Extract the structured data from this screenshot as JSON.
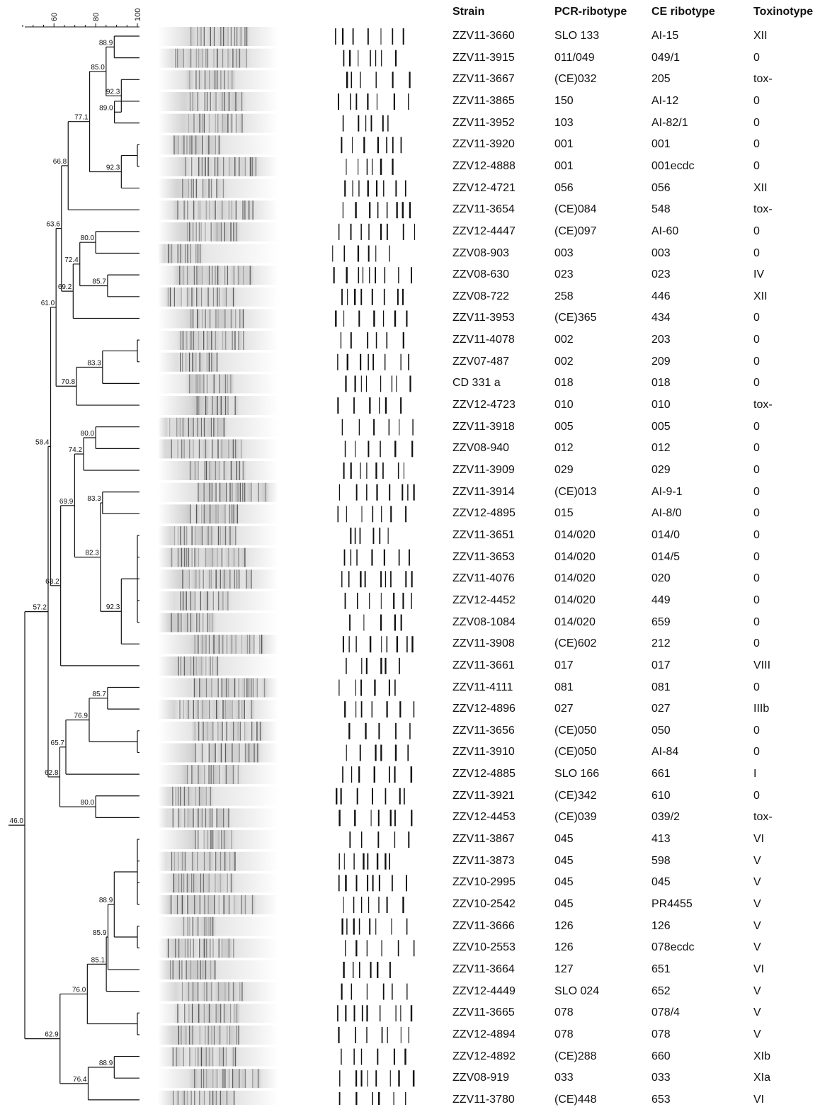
{
  "headers": {
    "strain": "Strain",
    "pcr": "PCR-ribotype",
    "ce": "CE ribotype",
    "tox": "Toxinotype"
  },
  "scale": {
    "ticks": [
      "60",
      "80",
      "100"
    ],
    "min": 40,
    "max": 100
  },
  "rows": [
    {
      "strain": "ZZV11-3660",
      "pcr": "SLO 133",
      "ce": "AI-15",
      "tox": "XII"
    },
    {
      "strain": "ZZV11-3915",
      "pcr": "011/049",
      "ce": "049/1",
      "tox": "0"
    },
    {
      "strain": "ZZV11-3667",
      "pcr": "(CE)032",
      "ce": "205",
      "tox": "tox-"
    },
    {
      "strain": "ZZV11-3865",
      "pcr": "150",
      "ce": "AI-12",
      "tox": "0"
    },
    {
      "strain": "ZZV11-3952",
      "pcr": "103",
      "ce": "AI-82/1",
      "tox": "0"
    },
    {
      "strain": "ZZV11-3920",
      "pcr": "001",
      "ce": "001",
      "tox": "0"
    },
    {
      "strain": "ZZV12-4888",
      "pcr": "001",
      "ce": "001ecdc",
      "tox": "0"
    },
    {
      "strain": "ZZV12-4721",
      "pcr": "056",
      "ce": "056",
      "tox": "XII"
    },
    {
      "strain": "ZZV11-3654",
      "pcr": "(CE)084",
      "ce": "548",
      "tox": "tox-"
    },
    {
      "strain": "ZZV12-4447",
      "pcr": "(CE)097",
      "ce": "AI-60",
      "tox": "0"
    },
    {
      "strain": "ZZV08-903",
      "pcr": "003",
      "ce": "003",
      "tox": "0"
    },
    {
      "strain": "ZZV08-630",
      "pcr": "023",
      "ce": "023",
      "tox": "IV"
    },
    {
      "strain": "ZZV08-722",
      "pcr": "258",
      "ce": "446",
      "tox": "XII"
    },
    {
      "strain": "ZZV11-3953",
      "pcr": "(CE)365",
      "ce": "434",
      "tox": "0"
    },
    {
      "strain": "ZZV11-4078",
      "pcr": "002",
      "ce": "203",
      "tox": "0"
    },
    {
      "strain": "ZZV07-487",
      "pcr": "002",
      "ce": "209",
      "tox": "0"
    },
    {
      "strain": "CD 331 a",
      "pcr": "018",
      "ce": "018",
      "tox": "0"
    },
    {
      "strain": "ZZV12-4723",
      "pcr": "010",
      "ce": "010",
      "tox": "tox-"
    },
    {
      "strain": "ZZV11-3918",
      "pcr": "005",
      "ce": "005",
      "tox": "0"
    },
    {
      "strain": "ZZV08-940",
      "pcr": "012",
      "ce": "012",
      "tox": "0"
    },
    {
      "strain": "ZZV11-3909",
      "pcr": "029",
      "ce": "029",
      "tox": "0"
    },
    {
      "strain": "ZZV11-3914",
      "pcr": "(CE)013",
      "ce": "AI-9-1",
      "tox": "0"
    },
    {
      "strain": "ZZV12-4895",
      "pcr": "015",
      "ce": "AI-8/0",
      "tox": "0"
    },
    {
      "strain": "ZZV11-3651",
      "pcr": "014/020",
      "ce": "014/0",
      "tox": "0"
    },
    {
      "strain": "ZZV11-3653",
      "pcr": "014/020",
      "ce": "014/5",
      "tox": "0"
    },
    {
      "strain": "ZZV11-4076",
      "pcr": "014/020",
      "ce": "020",
      "tox": "0"
    },
    {
      "strain": "ZZV12-4452",
      "pcr": "014/020",
      "ce": "449",
      "tox": "0"
    },
    {
      "strain": "ZZV08-1084",
      "pcr": "014/020",
      "ce": "659",
      "tox": "0"
    },
    {
      "strain": "ZZV11-3908",
      "pcr": "(CE)602",
      "ce": "212",
      "tox": "0"
    },
    {
      "strain": "ZZV11-3661",
      "pcr": "017",
      "ce": "017",
      "tox": "VIII"
    },
    {
      "strain": "ZZV11-4111",
      "pcr": "081",
      "ce": "081",
      "tox": "0"
    },
    {
      "strain": "ZZV12-4896",
      "pcr": "027",
      "ce": "027",
      "tox": "IIIb"
    },
    {
      "strain": "ZZV11-3656",
      "pcr": "(CE)050",
      "ce": "050",
      "tox": "0"
    },
    {
      "strain": "ZZV11-3910",
      "pcr": "(CE)050",
      "ce": "AI-84",
      "tox": "0"
    },
    {
      "strain": "ZZV12-4885",
      "pcr": "SLO 166",
      "ce": "661",
      "tox": "I"
    },
    {
      "strain": "ZZV11-3921",
      "pcr": "(CE)342",
      "ce": "610",
      "tox": "0"
    },
    {
      "strain": "ZZV12-4453",
      "pcr": "(CE)039",
      "ce": "039/2",
      "tox": "tox-"
    },
    {
      "strain": "ZZV11-3867",
      "pcr": "045",
      "ce": "413",
      "tox": "VI"
    },
    {
      "strain": "ZZV11-3873",
      "pcr": "045",
      "ce": "598",
      "tox": "V"
    },
    {
      "strain": "ZZV10-2995",
      "pcr": "045",
      "ce": "045",
      "tox": "V"
    },
    {
      "strain": "ZZV10-2542",
      "pcr": "045",
      "ce": "PR4455",
      "tox": "V"
    },
    {
      "strain": "ZZV11-3666",
      "pcr": "126",
      "ce": "126",
      "tox": "V"
    },
    {
      "strain": "ZZV10-2553",
      "pcr": "126",
      "ce": "078ecdc",
      "tox": "V"
    },
    {
      "strain": "ZZV11-3664",
      "pcr": "127",
      "ce": "651",
      "tox": "VI"
    },
    {
      "strain": "ZZV12-4449",
      "pcr": "SLO 024",
      "ce": "652",
      "tox": "V"
    },
    {
      "strain": "ZZV11-3665",
      "pcr": "078",
      "ce": "078/4",
      "tox": "V"
    },
    {
      "strain": "ZZV12-4894",
      "pcr": "078",
      "ce": "078",
      "tox": "V"
    },
    {
      "strain": "ZZV12-4892",
      "pcr": "(CE)288",
      "ce": "660",
      "tox": "XIb"
    },
    {
      "strain": "ZZV08-919",
      "pcr": "033",
      "ce": "033",
      "tox": "XIa"
    },
    {
      "strain": "ZZV11-3780",
      "pcr": "(CE)448",
      "ce": "653",
      "tox": "VI"
    }
  ],
  "tree": {
    "label": "46.0",
    "sim": 46.0,
    "children": [
      {
        "label": "57.2",
        "sim": 57.2,
        "children": [
          {
            "label": "58.4",
            "sim": 58.4,
            "children": [
              {
                "label": "61.0",
                "sim": 61.0,
                "children": [
                  {
                    "label": "63.6",
                    "sim": 63.6,
                    "children": [
                      {
                        "label": "66.8",
                        "sim": 66.8,
                        "children": [
                          {
                            "label": "77.1",
                            "sim": 77.1,
                            "children": [
                              {
                                "label": "85.0",
                                "sim": 85.0,
                                "children": [
                                  {
                                    "label": "88.9",
                                    "sim": 88.9,
                                    "children": [
                                      {
                                        "leaf": 0
                                      },
                                      {
                                        "leaf": 1
                                      }
                                    ]
                                  },
                                  {
                                    "label": "92.3",
                                    "sim": 92.3,
                                    "children": [
                                      {
                                        "leaf": 2
                                      },
                                      {
                                        "label": "89.0",
                                        "sim": 89.0,
                                        "children": [
                                          {
                                            "leaf": 3
                                          },
                                          {
                                            "leaf": 4
                                          }
                                        ]
                                      }
                                    ]
                                  }
                                ]
                              },
                              {
                                "label": "92.3",
                                "sim": 92.3,
                                "children": [
                                  {
                                    "label": "",
                                    "sim": 100,
                                    "children": [
                                      {
                                        "leaf": 5
                                      },
                                      {
                                        "leaf": 6
                                      }
                                    ]
                                  },
                                  {
                                    "leaf": 7
                                  }
                                ]
                              }
                            ]
                          },
                          {
                            "leaf": 8
                          }
                        ]
                      },
                      {
                        "label": "69.2",
                        "sim": 69.2,
                        "children": [
                          {
                            "label": "72.4",
                            "sim": 72.4,
                            "children": [
                              {
                                "label": "80.0",
                                "sim": 80.0,
                                "children": [
                                  {
                                    "leaf": 9
                                  },
                                  {
                                    "leaf": 10
                                  }
                                ]
                              },
                              {
                                "label": "85.7",
                                "sim": 85.7,
                                "children": [
                                  {
                                    "leaf": 11
                                  },
                                  {
                                    "leaf": 12
                                  }
                                ]
                              }
                            ]
                          },
                          {
                            "leaf": 13
                          }
                        ]
                      }
                    ]
                  },
                  {
                    "label": "70.8",
                    "sim": 70.8,
                    "children": [
                      {
                        "label": "83.3",
                        "sim": 83.3,
                        "children": [
                          {
                            "label": "",
                            "sim": 100,
                            "children": [
                              {
                                "leaf": 14
                              },
                              {
                                "leaf": 15
                              }
                            ]
                          },
                          {
                            "leaf": 16
                          }
                        ]
                      },
                      {
                        "leaf": 17
                      }
                    ]
                  }
                ]
              },
              {
                "label": "63.2",
                "sim": 63.2,
                "children": [
                  {
                    "label": "69.9",
                    "sim": 69.9,
                    "children": [
                      {
                        "label": "74.2",
                        "sim": 74.2,
                        "children": [
                          {
                            "label": "80.0",
                            "sim": 80.0,
                            "children": [
                              {
                                "leaf": 18
                              },
                              {
                                "leaf": 19
                              }
                            ]
                          },
                          {
                            "leaf": 20
                          }
                        ]
                      },
                      {
                        "label": "82.3",
                        "sim": 82.3,
                        "children": [
                          {
                            "label": "83.3",
                            "sim": 83.3,
                            "children": [
                              {
                                "leaf": 21
                              },
                              {
                                "leaf": 22
                              }
                            ]
                          },
                          {
                            "label": "92.3",
                            "sim": 92.3,
                            "children": [
                              {
                                "label": "",
                                "sim": 100,
                                "children": [
                                  {
                                    "leaf": 23
                                  },
                                  {
                                    "leaf": 24
                                  },
                                  {
                                    "leaf": 25
                                  },
                                  {
                                    "leaf": 26
                                  },
                                  {
                                    "leaf": 27
                                  }
                                ]
                              },
                              {
                                "leaf": 28
                              }
                            ]
                          }
                        ]
                      }
                    ]
                  },
                  {
                    "leaf": 29
                  }
                ]
              }
            ]
          },
          {
            "label": "62.8",
            "sim": 62.8,
            "children": [
              {
                "label": "65.7",
                "sim": 65.7,
                "children": [
                  {
                    "label": "76.9",
                    "sim": 76.9,
                    "children": [
                      {
                        "label": "85.7",
                        "sim": 85.7,
                        "children": [
                          {
                            "leaf": 30
                          },
                          {
                            "leaf": 31
                          }
                        ]
                      },
                      {
                        "label": "",
                        "sim": 100,
                        "children": [
                          {
                            "leaf": 32
                          },
                          {
                            "leaf": 33
                          }
                        ]
                      }
                    ]
                  },
                  {
                    "leaf": 34
                  }
                ]
              },
              {
                "label": "80.0",
                "sim": 80.0,
                "children": [
                  {
                    "leaf": 35
                  },
                  {
                    "leaf": 36
                  }
                ]
              }
            ]
          }
        ]
      },
      {
        "label": "62.9",
        "sim": 62.9,
        "children": [
          {
            "label": "76.0",
            "sim": 76.0,
            "children": [
              {
                "label": "85.1",
                "sim": 85.1,
                "children": [
                  {
                    "label": "85.9",
                    "sim": 85.9,
                    "children": [
                      {
                        "label": "88.9",
                        "sim": 88.9,
                        "children": [
                          {
                            "label": "",
                            "sim": 100,
                            "children": [
                              {
                                "leaf": 37
                              },
                              {
                                "leaf": 38
                              },
                              {
                                "leaf": 39
                              },
                              {
                                "leaf": 40
                              }
                            ]
                          },
                          {
                            "label": "",
                            "sim": 100,
                            "children": [
                              {
                                "leaf": 41
                              },
                              {
                                "leaf": 42
                              }
                            ]
                          }
                        ]
                      },
                      {
                        "leaf": 43
                      }
                    ]
                  },
                  {
                    "leaf": 44
                  }
                ]
              },
              {
                "label": "",
                "sim": 100,
                "children": [
                  {
                    "leaf": 45
                  },
                  {
                    "leaf": 46
                  }
                ]
              }
            ]
          },
          {
            "label": "76.4",
            "sim": 76.4,
            "children": [
              {
                "label": "88.9",
                "sim": 88.9,
                "children": [
                  {
                    "leaf": 47
                  },
                  {
                    "leaf": 48
                  }
                ]
              },
              {
                "leaf": 49
              }
            ]
          }
        ]
      }
    ]
  }
}
